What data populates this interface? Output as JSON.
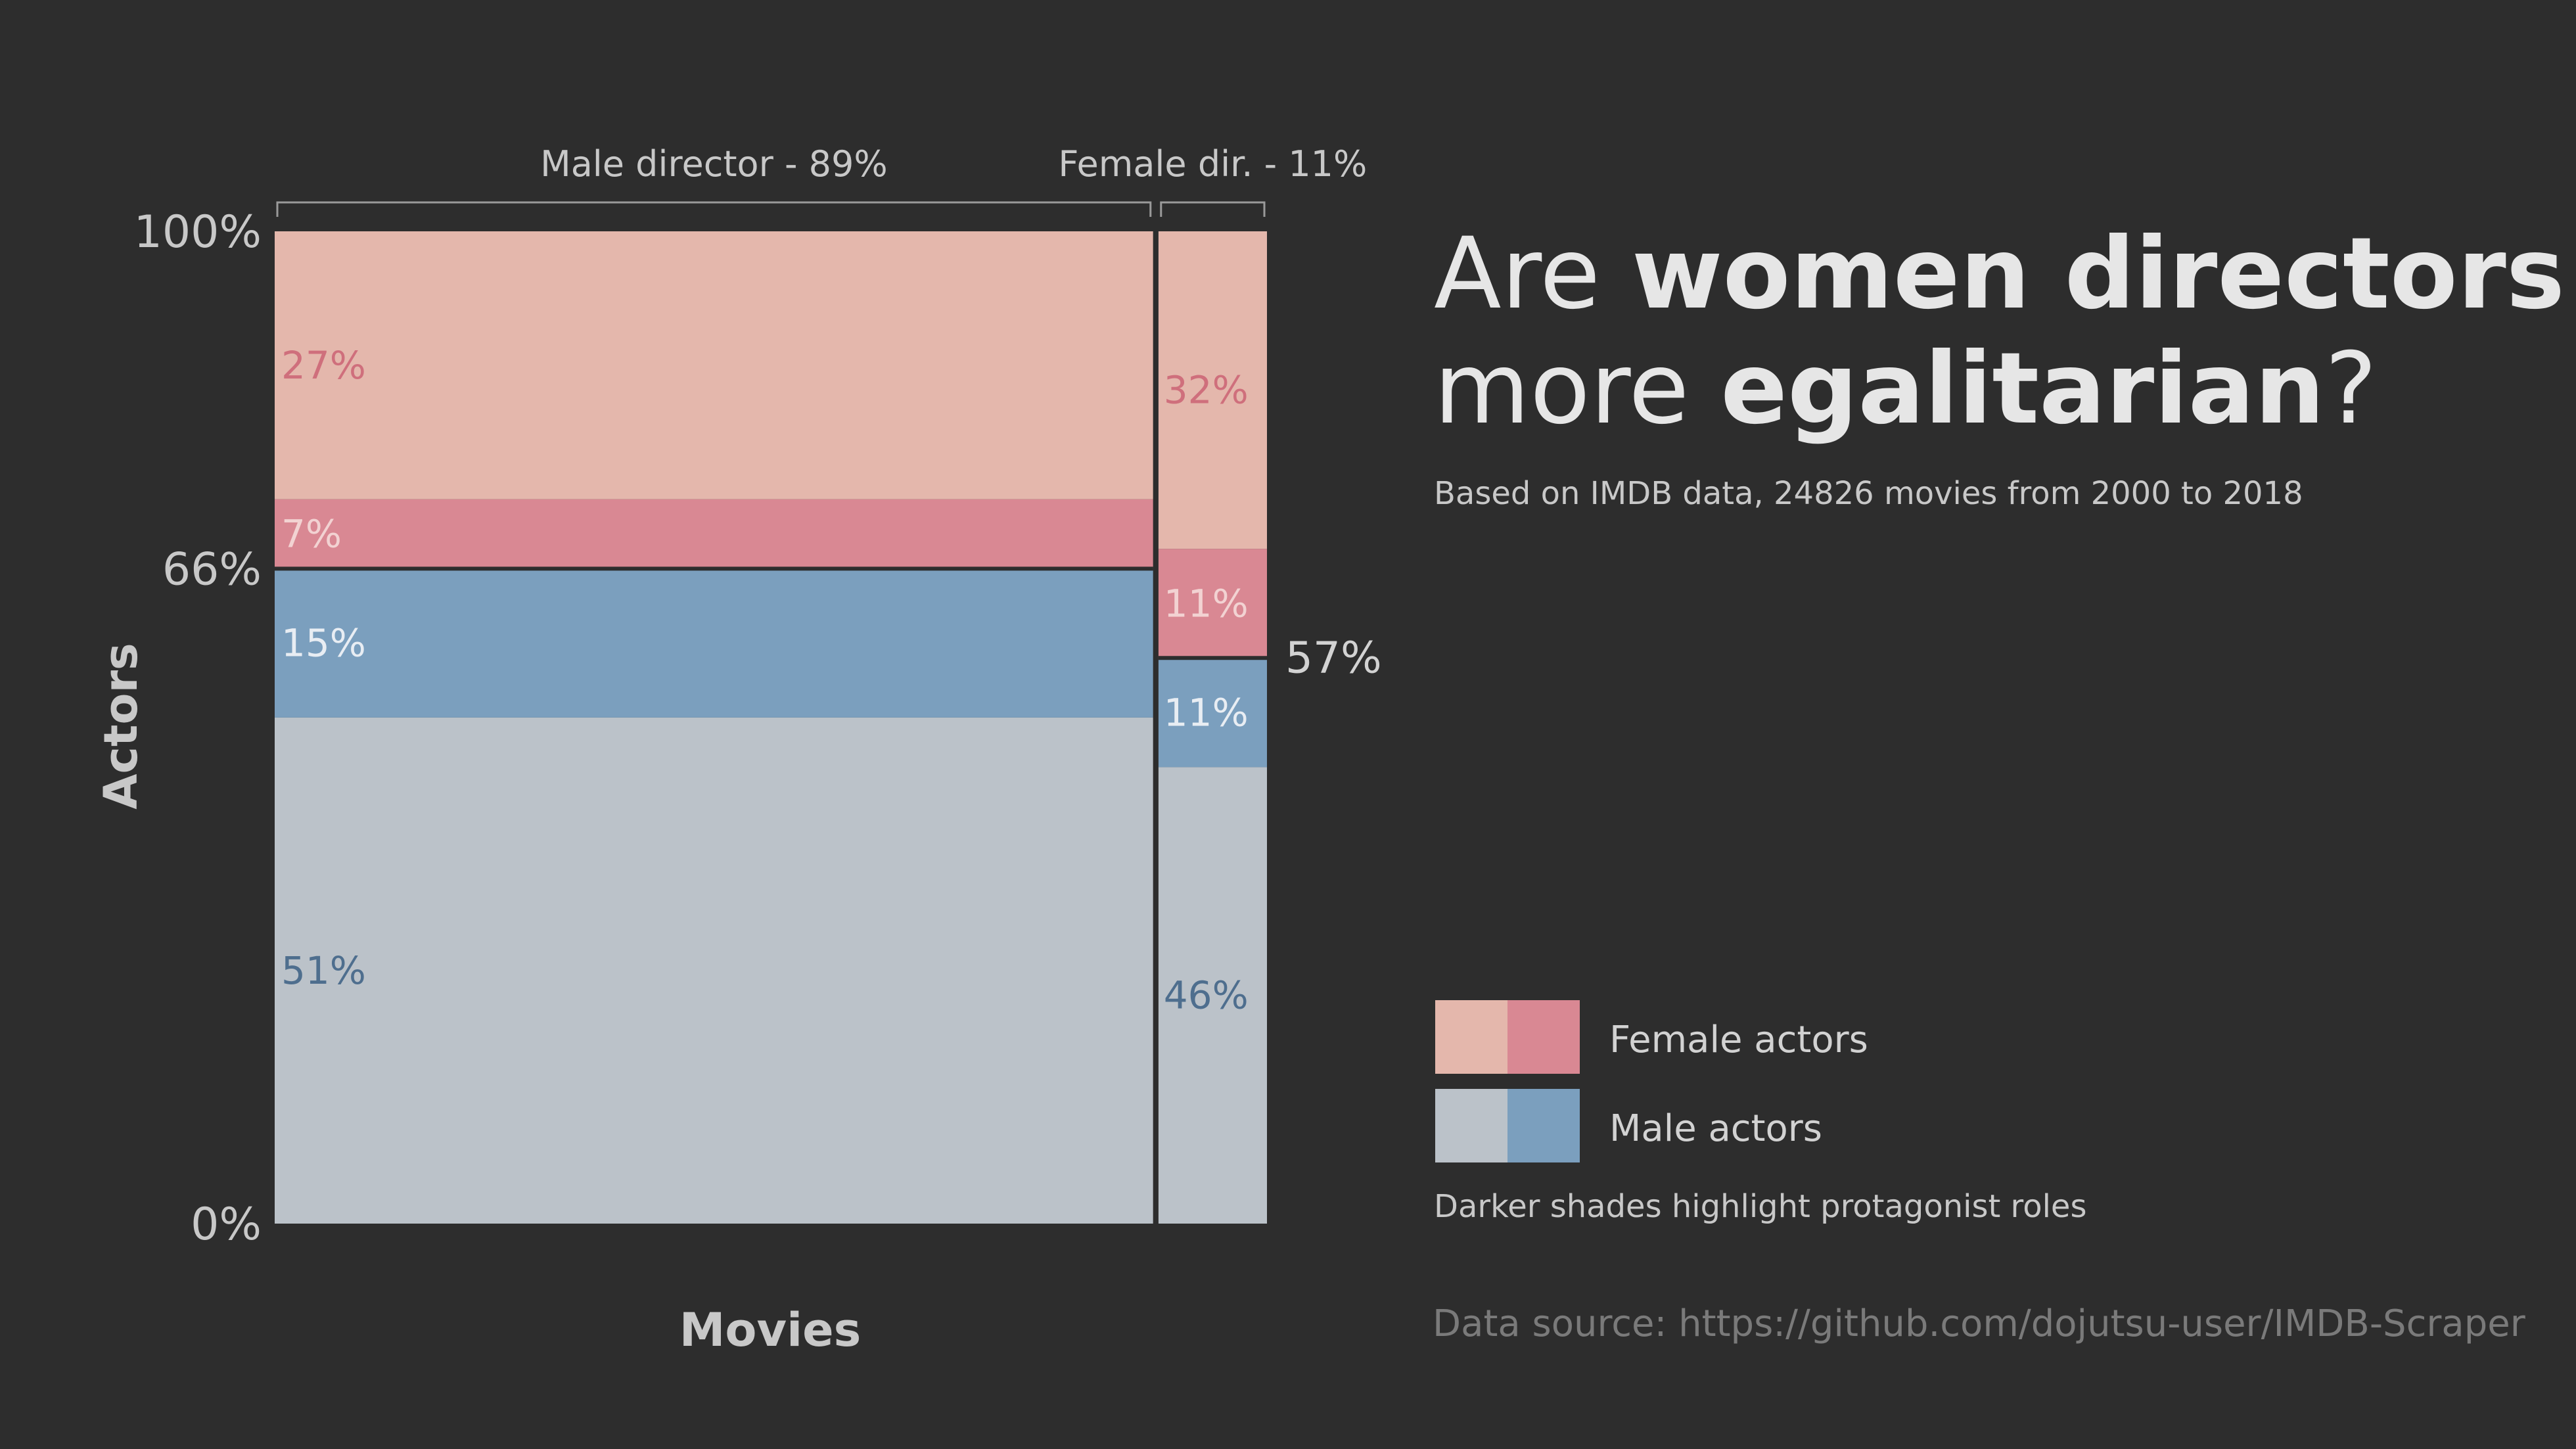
{
  "title": {
    "line1_regular": "Are ",
    "line1_bold": "women directors",
    "line2_regular": "more ",
    "line2_bold": "egalitarian",
    "line2_end": "?"
  },
  "subtitle": "Based on IMDB data, 24826 movies from 2000 to 2018",
  "legend": {
    "items": [
      {
        "label": "Female actors",
        "colors": [
          "#e4b7ac",
          "#d98893"
        ]
      },
      {
        "label": "Male actors",
        "colors": [
          "#bbc2c9",
          "#7b9fbe"
        ]
      }
    ],
    "note": "Darker shades highlight protagonist roles"
  },
  "source": "Data source: https://github.com/dojutsu-user/IMDB-Scraper",
  "chart_data": {
    "type": "mosaic",
    "xlabel": "Movies",
    "ylabel": "Actors",
    "ylim": [
      0,
      100
    ],
    "y_ticks": [
      {
        "value": 0,
        "label": "0%"
      },
      {
        "value": 66,
        "label": "66%"
      },
      {
        "value": 100,
        "label": "100%"
      }
    ],
    "columns": [
      {
        "name": "Male director - 89%",
        "share": 89,
        "male_actor_total_label": "",
        "segments": [
          {
            "group": "Male actors",
            "role": "other",
            "value": 51,
            "label": "51%",
            "color": "#bbc2c9",
            "text_color": "#4e6e8e"
          },
          {
            "group": "Male actors",
            "role": "protagonist",
            "value": 15,
            "label": "15%",
            "color": "#7b9fbe",
            "text_color": "#e8edf3"
          },
          {
            "group": "Female actors",
            "role": "protagonist",
            "value": 7,
            "label": "7%",
            "color": "#d98893",
            "text_color": "#f2d2d2"
          },
          {
            "group": "Female actors",
            "role": "other",
            "value": 27,
            "label": "27%",
            "color": "#e4b7ac",
            "text_color": "#cf6f7c"
          }
        ]
      },
      {
        "name": "Female dir. - 11%",
        "share": 11,
        "male_actor_total_label": "57%",
        "segments": [
          {
            "group": "Male actors",
            "role": "other",
            "value": 46,
            "label": "46%",
            "color": "#bbc2c9",
            "text_color": "#4e6e8e"
          },
          {
            "group": "Male actors",
            "role": "protagonist",
            "value": 11,
            "label": "11%",
            "color": "#7b9fbe",
            "text_color": "#e8edf3"
          },
          {
            "group": "Female actors",
            "role": "protagonist",
            "value": 11,
            "label": "11%",
            "color": "#d98893",
            "text_color": "#f2d2d2"
          },
          {
            "group": "Female actors",
            "role": "other",
            "value": 32,
            "label": "32%",
            "color": "#e4b7ac",
            "text_color": "#cf6f7c"
          }
        ]
      }
    ]
  }
}
